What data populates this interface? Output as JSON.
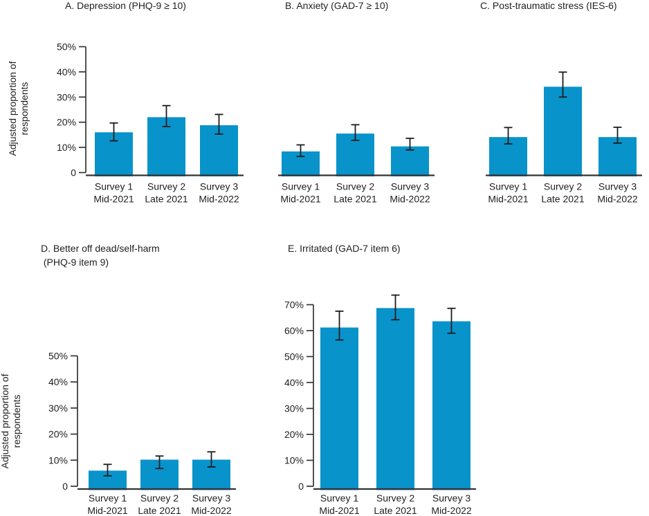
{
  "figure": {
    "bar_color": "#0993cb",
    "error_color": "#1c1c1c",
    "axis_color": "#333333",
    "text_color": "#1f1f1f"
  },
  "chart_data": {
    "type": "bar",
    "ylabel": "Adjusted proportion of respondents",
    "ylabel_display": "Adjusted proportion of\nrespondents",
    "categories_line1": [
      "Survey 1",
      "Survey 2",
      "Survey 3"
    ],
    "categories_line2": [
      "Mid-2021",
      "Late 2021",
      "Mid-2022"
    ],
    "grid": false,
    "legend": "none",
    "error_bars": true,
    "panels": [
      {
        "label": "A",
        "title": "A. Depression (PHQ-9 ≥ 10)",
        "values": [
          16.0,
          22.0,
          18.8
        ],
        "ci_low": [
          12.6,
          18.3,
          15.3
        ],
        "ci_high": [
          19.7,
          26.6,
          23.1
        ],
        "ylim": [
          0,
          50
        ],
        "yticks": [
          0,
          10,
          20,
          30,
          40,
          50
        ],
        "ytick_labels": [
          "0",
          "10%",
          "20%",
          "30%",
          "40%",
          "50%"
        ]
      },
      {
        "label": "B",
        "title": "B. Anxiety (GAD-7 ≥ 10)",
        "values": [
          8.4,
          15.5,
          10.4
        ],
        "ci_low": [
          6.4,
          12.8,
          9.0
        ],
        "ci_high": [
          11.0,
          19.0,
          13.6
        ],
        "ylim": [
          0,
          50
        ],
        "yticks": [],
        "ytick_labels": []
      },
      {
        "label": "C",
        "title": "C. Post-traumatic stress (IES-6)",
        "values": [
          14.1,
          34.1,
          14.1
        ],
        "ci_low": [
          11.4,
          30.0,
          11.7
        ],
        "ci_high": [
          17.9,
          39.9,
          18.0
        ],
        "ylim": [
          0,
          50
        ],
        "yticks": [],
        "ytick_labels": []
      },
      {
        "label": "D",
        "title": "D. Better off dead/self-harm\n (PHQ-9 item 9)",
        "values": [
          6.0,
          10.2,
          10.2
        ],
        "ci_low": [
          4.0,
          6.8,
          7.4
        ],
        "ci_high": [
          8.4,
          11.6,
          13.2
        ],
        "ylim": [
          0,
          50
        ],
        "yticks": [
          0,
          10,
          20,
          30,
          40,
          50
        ],
        "ytick_labels": [
          "0",
          "10%",
          "20%",
          "30%",
          "40%",
          "50%"
        ]
      },
      {
        "label": "E",
        "title": "E. Irritated (GAD-7 item 6)",
        "values": [
          61.2,
          68.7,
          63.6
        ],
        "ci_low": [
          56.4,
          64.2,
          59.0
        ],
        "ci_high": [
          67.5,
          73.7,
          68.6
        ],
        "ylim": [
          0,
          70
        ],
        "yticks": [
          0,
          10,
          20,
          30,
          40,
          50,
          60,
          70
        ],
        "ytick_labels": [
          "0",
          "10%",
          "20%",
          "30%",
          "40%",
          "50%",
          "60%",
          "70%"
        ]
      }
    ]
  }
}
